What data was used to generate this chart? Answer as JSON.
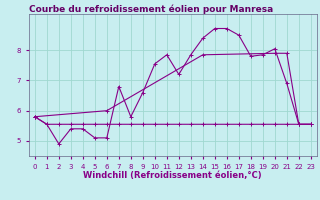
{
  "title": "Courbe du refroidissement éolien pour Manresa",
  "xlabel": "Windchill (Refroidissement éolien,°C)",
  "background_color": "#c8eef0",
  "grid_color": "#a0d8d0",
  "line_color": "#880088",
  "xlim": [
    -0.5,
    23.5
  ],
  "ylim": [
    4.5,
    9.2
  ],
  "yticks": [
    5,
    6,
    7,
    8
  ],
  "xticks": [
    0,
    1,
    2,
    3,
    4,
    5,
    6,
    7,
    8,
    9,
    10,
    11,
    12,
    13,
    14,
    15,
    16,
    17,
    18,
    19,
    20,
    21,
    22,
    23
  ],
  "curve1_x": [
    0,
    1,
    2,
    3,
    4,
    5,
    6,
    7,
    8,
    9,
    10,
    11,
    12,
    13,
    14,
    15,
    16,
    17,
    18,
    19,
    20,
    21,
    22,
    23
  ],
  "curve1_y": [
    5.8,
    5.55,
    4.9,
    5.4,
    5.4,
    5.1,
    5.1,
    6.8,
    5.8,
    6.6,
    7.55,
    7.85,
    7.2,
    7.85,
    8.4,
    8.72,
    8.72,
    8.5,
    7.8,
    7.85,
    8.05,
    6.9,
    5.55,
    5.55
  ],
  "curve2_x": [
    0,
    1,
    2,
    3,
    4,
    5,
    6,
    7,
    8,
    9,
    10,
    11,
    12,
    13,
    14,
    15,
    16,
    17,
    18,
    19,
    20,
    21,
    22,
    23
  ],
  "curve2_y": [
    5.8,
    5.55,
    5.55,
    5.55,
    5.55,
    5.55,
    5.55,
    5.55,
    5.55,
    5.55,
    5.55,
    5.55,
    5.55,
    5.55,
    5.55,
    5.55,
    5.55,
    5.55,
    5.55,
    5.55,
    5.55,
    5.55,
    5.55,
    5.55
  ],
  "curve3_x": [
    0,
    6,
    14,
    20,
    21,
    22,
    23
  ],
  "curve3_y": [
    5.8,
    6.0,
    7.85,
    7.9,
    7.9,
    5.55,
    5.55
  ],
  "title_fontsize": 6.5,
  "tick_fontsize": 5,
  "label_fontsize": 6
}
